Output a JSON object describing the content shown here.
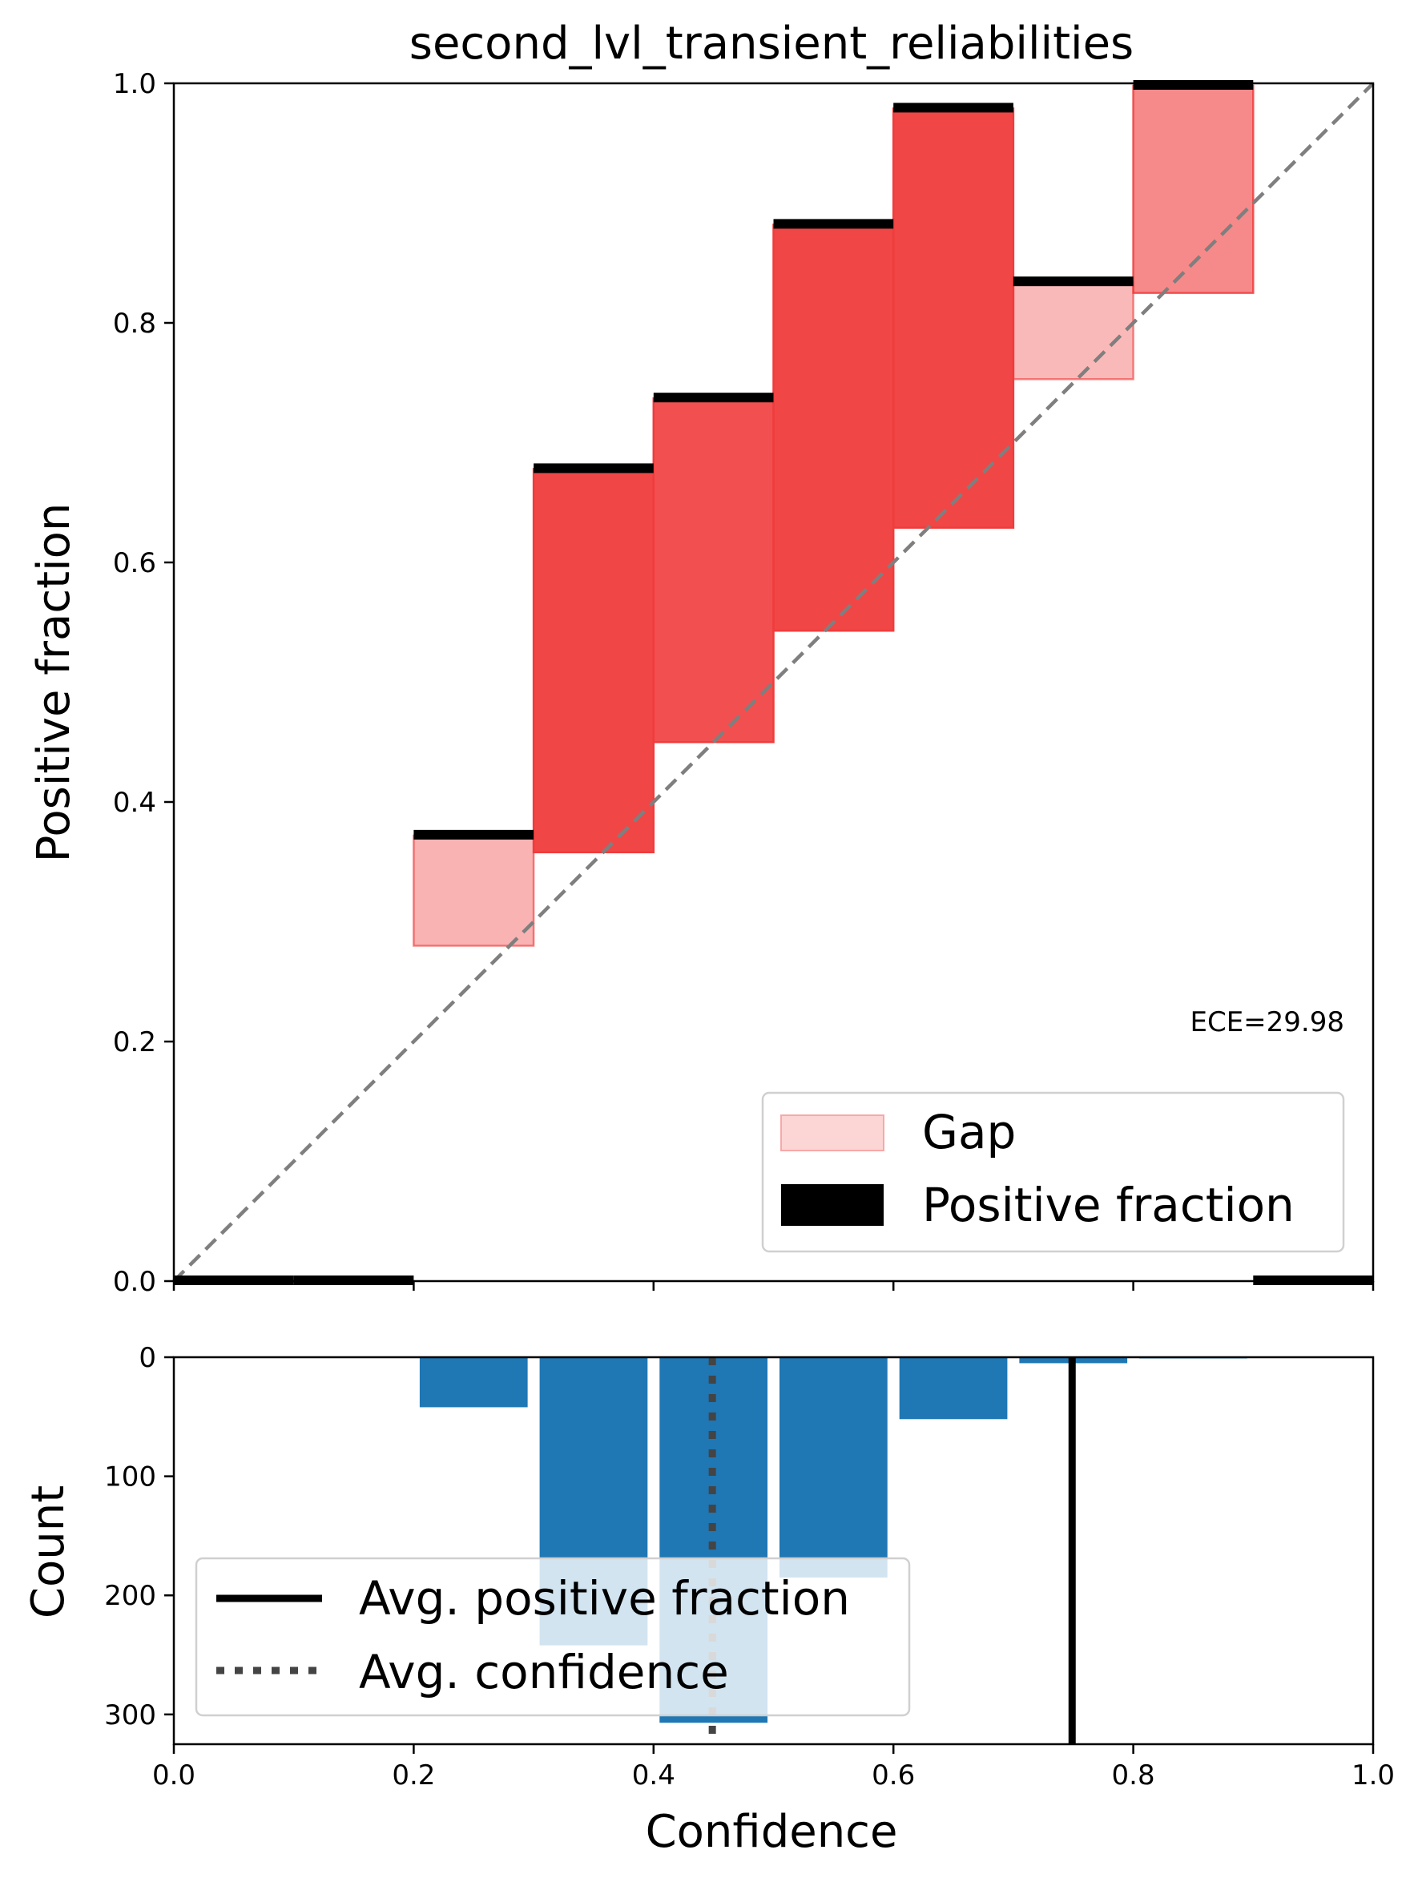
{
  "chart_data": [
    {
      "type": "bar",
      "title": "second_lvl_transient_reliabilities",
      "xlabel": "",
      "ylabel": "Positive fraction",
      "xlim": [
        0.0,
        1.0
      ],
      "ylim": [
        0.0,
        1.0
      ],
      "yticks": [
        "0.0",
        "0.2",
        "0.4",
        "0.6",
        "0.8",
        "1.0"
      ],
      "grid": false,
      "bin_edges": [
        0.0,
        0.1,
        0.2,
        0.3,
        0.4,
        0.5,
        0.6,
        0.7,
        0.8,
        0.9,
        1.0
      ],
      "positive_fraction": [
        0.0,
        0.0,
        0.372,
        0.678,
        0.737,
        0.882,
        0.979,
        0.834,
        0.998,
        0.0
      ],
      "confidence": [
        null,
        null,
        0.28,
        0.358,
        0.45,
        0.543,
        0.629,
        0.753,
        0.825,
        null
      ],
      "gap_color": "#f03c3c",
      "annotation": "ECE=29.98",
      "legend": {
        "position": "lower-right",
        "entries": [
          {
            "label": "Gap",
            "color": "#fcd5d5"
          },
          {
            "label": "Positive fraction",
            "color": "#000000"
          }
        ]
      },
      "reference_line": {
        "style": "dashed",
        "color": "#7f7f7f"
      }
    },
    {
      "type": "bar",
      "xlabel": "Confidence",
      "ylabel": "Count",
      "xlim": [
        0.0,
        1.0
      ],
      "ylim": [
        325,
        0
      ],
      "yticks": [
        "0",
        "100",
        "200",
        "300"
      ],
      "xticks": [
        "0.0",
        "0.2",
        "0.4",
        "0.6",
        "0.8",
        "1.0"
      ],
      "bar_color": "#1f77b4",
      "bin_centers": [
        0.25,
        0.35,
        0.45,
        0.55,
        0.65,
        0.75,
        0.85
      ],
      "counts": [
        42,
        242,
        307,
        185,
        52,
        5,
        1
      ],
      "avg_positive_fraction": 0.749,
      "avg_confidence": 0.449,
      "legend": {
        "position": "lower-left",
        "entries": [
          {
            "label": "Avg. positive fraction",
            "style": "solid",
            "color": "#000000"
          },
          {
            "label": "Avg. confidence",
            "style": "dotted",
            "color": "#444444"
          }
        ]
      }
    }
  ]
}
